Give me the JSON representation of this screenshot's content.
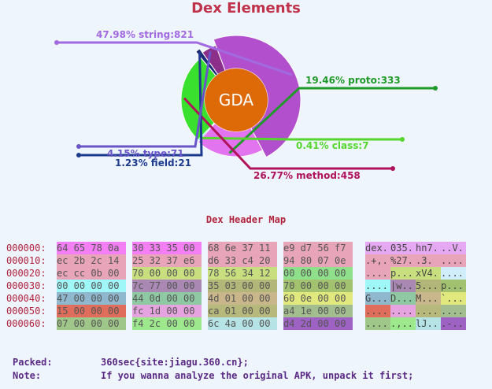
{
  "title": "Dex Elements",
  "chart_data": {
    "type": "pie",
    "title": "Dex Elements",
    "center_label": "GDA",
    "slices": [
      {
        "label": "47.98% string:821",
        "name": "string",
        "percent": 47.98,
        "count": 821,
        "color": "#b14fcc"
      },
      {
        "label": "19.46% proto:333",
        "name": "proto",
        "percent": 19.46,
        "count": 333,
        "color": "#e374f0"
      },
      {
        "label": "0.41% class:7",
        "name": "class",
        "percent": 0.41,
        "count": 7,
        "color": "#29c9e0"
      },
      {
        "label": "26.77% method:458",
        "name": "method",
        "percent": 26.77,
        "count": 458,
        "color": "#39e02e"
      },
      {
        "label": "1.23% field:21",
        "name": "field",
        "percent": 1.23,
        "count": 21,
        "color": "#1e2a78"
      },
      {
        "label": "4.15% type:71",
        "name": "type",
        "percent": 4.15,
        "count": 71,
        "color": "#8b2f8a"
      }
    ],
    "label_colors": {
      "string": "#a26ae0",
      "proto": "#1f9a2a",
      "class": "#55d62d",
      "method": "#b0125c",
      "field": "#1c3b8c",
      "type": "#6a55c8"
    },
    "center_color": "#dd6a07"
  },
  "hex_map": {
    "title": "Dex Header Map",
    "rows": [
      {
        "offset": "000000:",
        "cells": [
          "64 65 78 0a",
          "30 33 35 00",
          "68 6e 37 11",
          "e9 d7 56 f7"
        ],
        "ascii": [
          "dex.",
          "035.",
          "hn7.",
          "..V."
        ]
      },
      {
        "offset": "000010:",
        "cells": [
          "ec 2b 2c 14",
          "25 32 37 e6",
          "d6 33 c4 20",
          "94 80 07 0e"
        ],
        "ascii": [
          ".+,.",
          "%27.",
          ".3. ",
          "...."
        ]
      },
      {
        "offset": "000020:",
        "cells": [
          "ec cc 0b 00",
          "70 00 00 00",
          "78 56 34 12",
          "00 00 00 00"
        ],
        "ascii": [
          "....",
          "p...",
          "xV4.",
          "...."
        ]
      },
      {
        "offset": "000030:",
        "cells": [
          "00 00 00 00",
          "7c 77 00 00",
          "35 03 00 00",
          "70 00 00 00"
        ],
        "ascii": [
          "....",
          "|w..",
          "5...",
          "p..."
        ]
      },
      {
        "offset": "000040:",
        "cells": [
          "47 00 00 00",
          "44 0d 00 00",
          "4d 01 00 00",
          "60 0e 00 00"
        ],
        "ascii": [
          "G...",
          "D...",
          "M...",
          "`..."
        ]
      },
      {
        "offset": "000050:",
        "cells": [
          "15 00 00 00",
          "fc 1d 00 00",
          "ca 01 00 00",
          "a4 1e 00 00"
        ],
        "ascii": [
          "....",
          "....",
          "....",
          "...."
        ]
      },
      {
        "offset": "000060:",
        "cells": [
          "07 00 00 00",
          "f4 2c 00 00",
          "6c 4a 00 00",
          "d4 2d 00 00"
        ],
        "ascii": [
          "....",
          ".,..",
          "lJ..",
          ".-.."
        ]
      }
    ],
    "cell_colors": [
      [
        "#f47ff4",
        "#f47ff4",
        "#e8a4b9",
        "#e8a4b9"
      ],
      [
        "#e8a4b9",
        "#e8a4b9",
        "#e8a4b9",
        "#e8a4b9"
      ],
      [
        "#e8a4b9",
        "#c9df7f",
        "#c9df7f",
        "#8fe08a"
      ],
      [
        "#9ff7f7",
        "#a989b4",
        "#b2b779",
        "#a2c26f"
      ],
      [
        "#8fb8cf",
        "#8fc9a3",
        "#c9b68a",
        "#e1e87e"
      ],
      [
        "#e06d5c",
        "#e5a3df",
        "#b7b87c",
        "#a2be8f"
      ],
      [
        "#a0c78a",
        "#9de78d",
        "#b6e3e5",
        "#9d62c4"
      ]
    ],
    "ascii_colors": [
      [
        "#e5a8f2",
        "#e5a8f2",
        "#e5a8f2",
        "#e5a8f2"
      ],
      [
        "#e8a4b9",
        "#e8a4b9",
        "#e8a4b9",
        "#e8a4b9"
      ],
      [
        "#e8a4b9",
        "#c9df7f",
        "#c9df7f",
        "#cfeefa"
      ],
      [
        "#9ff7f7",
        "#a989b4",
        "#b2b779",
        "#a2c26f"
      ],
      [
        "#8fb8cf",
        "#8fc9a3",
        "#c9b68a",
        "#e1e87e"
      ],
      [
        "#e06d5c",
        "#e5a3df",
        "#b7b87c",
        "#a2be8f"
      ],
      [
        "#a0c78a",
        "#9de78d",
        "#b6e3e5",
        "#9d62c4"
      ]
    ]
  },
  "info": {
    "packed_key": "Packed:",
    "packed_value": "360sec{site:jiagu.360.cn};",
    "note_key": "Note:",
    "note_value": "If you wanna analyze the original APK, unpack it first;"
  }
}
